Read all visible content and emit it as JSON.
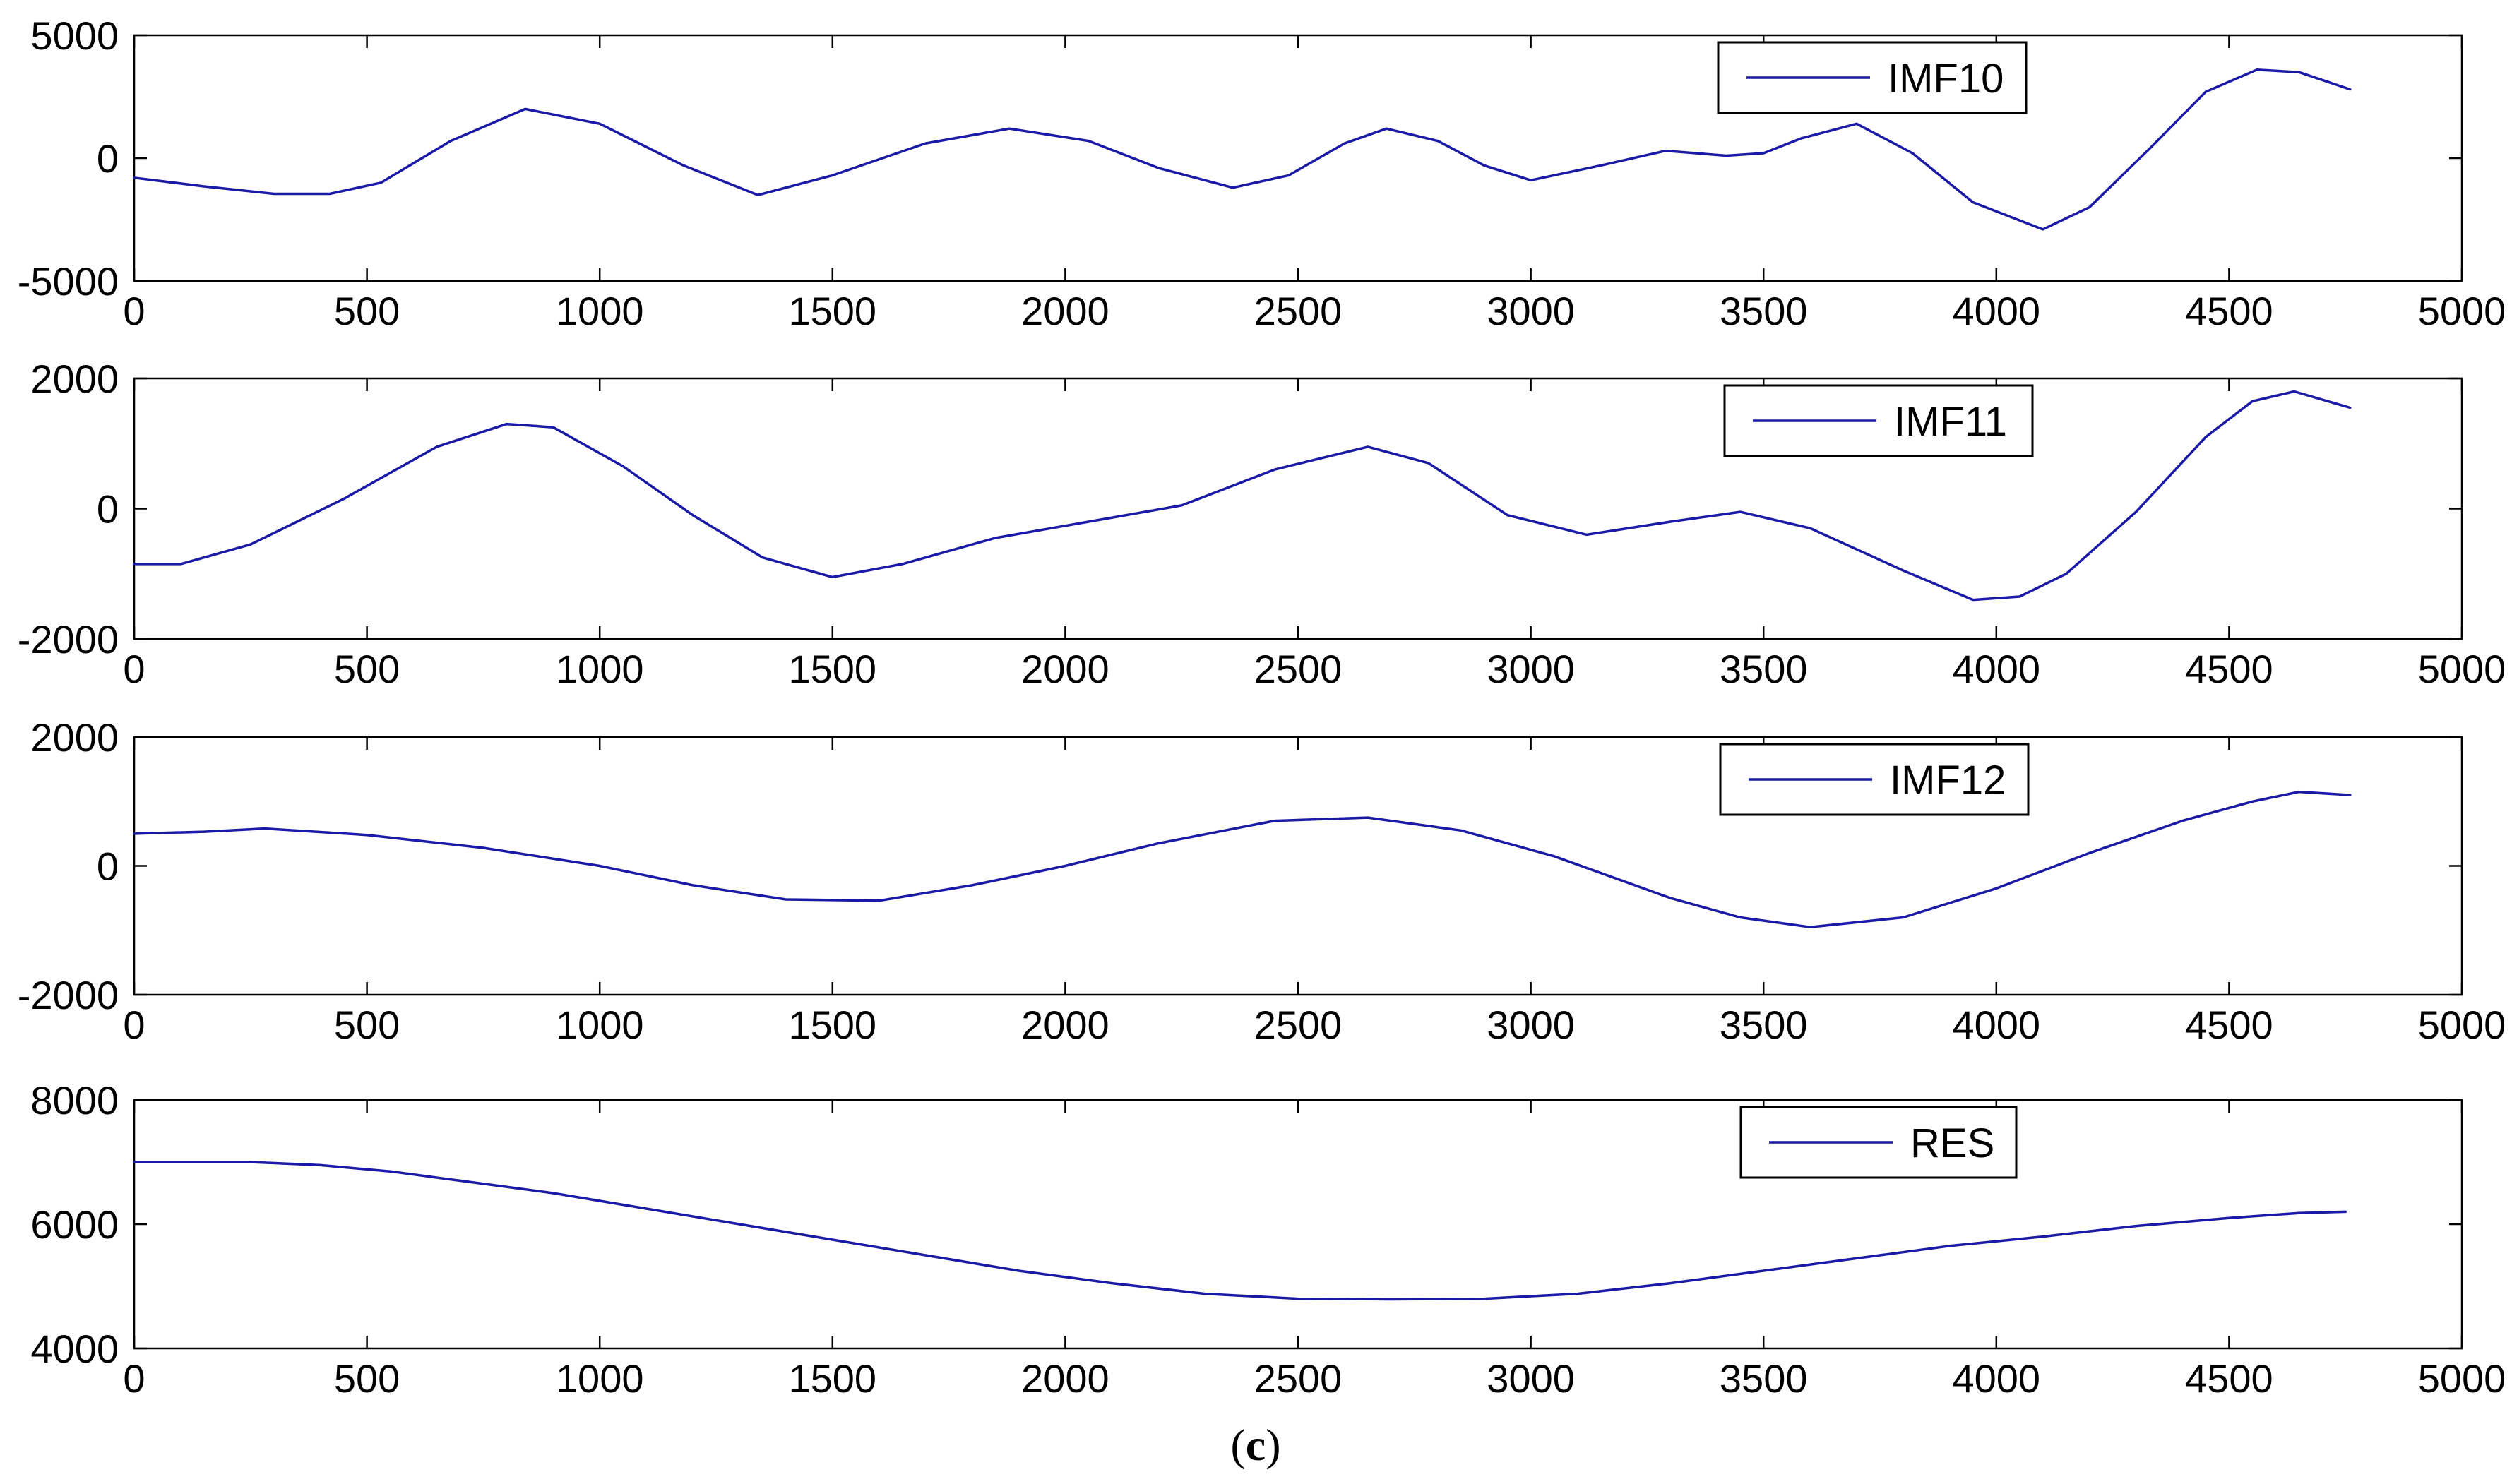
{
  "figure": {
    "caption_open": "(",
    "caption_letter": "c",
    "caption_close": ")"
  },
  "colors": {
    "series": "#1a1aa6",
    "axes": "#000000",
    "background": "#ffffff"
  },
  "chart_data": [
    {
      "type": "line",
      "title": "",
      "xlabel": "",
      "ylabel": "",
      "xlim": [
        0,
        5000
      ],
      "ylim": [
        -5000,
        5000
      ],
      "xticks": [
        0,
        500,
        1000,
        1500,
        2000,
        2500,
        3000,
        3500,
        4000,
        4500,
        5000
      ],
      "yticks": [
        -5000,
        0,
        5000
      ],
      "grid": false,
      "legend_position": "top-right",
      "series": [
        {
          "name": "IMF10",
          "x": [
            0,
            150,
            300,
            420,
            530,
            680,
            840,
            1000,
            1180,
            1340,
            1500,
            1700,
            1880,
            2050,
            2200,
            2360,
            2480,
            2600,
            2690,
            2800,
            2900,
            3000,
            3150,
            3290,
            3420,
            3500,
            3580,
            3700,
            3820,
            3950,
            4100,
            4200,
            4330,
            4450,
            4560,
            4650,
            4760
          ],
          "y": [
            -800,
            -1150,
            -1450,
            -1450,
            -1000,
            700,
            2000,
            1400,
            -300,
            -1500,
            -700,
            600,
            1200,
            700,
            -400,
            -1200,
            -700,
            600,
            1200,
            700,
            -300,
            -900,
            -300,
            300,
            100,
            200,
            800,
            1400,
            200,
            -1800,
            -2900,
            -2000,
            400,
            2700,
            3600,
            3500,
            2800
          ]
        }
      ]
    },
    {
      "type": "line",
      "title": "",
      "xlabel": "",
      "ylabel": "",
      "xlim": [
        0,
        5000
      ],
      "ylim": [
        -2000,
        2000
      ],
      "xticks": [
        0,
        500,
        1000,
        1500,
        2000,
        2500,
        3000,
        3500,
        4000,
        4500,
        5000
      ],
      "yticks": [
        -2000,
        0,
        2000
      ],
      "grid": false,
      "legend_position": "top-right",
      "series": [
        {
          "name": "IMF11",
          "x": [
            0,
            100,
            250,
            450,
            650,
            800,
            900,
            1050,
            1200,
            1350,
            1500,
            1650,
            1850,
            2050,
            2250,
            2450,
            2650,
            2780,
            2950,
            3120,
            3300,
            3450,
            3600,
            3800,
            3950,
            4050,
            4150,
            4300,
            4450,
            4550,
            4640,
            4760
          ],
          "y": [
            -850,
            -850,
            -550,
            150,
            950,
            1300,
            1250,
            650,
            -100,
            -750,
            -1050,
            -850,
            -450,
            -200,
            50,
            600,
            950,
            700,
            -100,
            -400,
            -200,
            -50,
            -300,
            -950,
            -1400,
            -1350,
            -1000,
            -50,
            1100,
            1650,
            1800,
            1550
          ]
        }
      ]
    },
    {
      "type": "line",
      "title": "",
      "xlabel": "",
      "ylabel": "",
      "xlim": [
        0,
        5000
      ],
      "ylim": [
        -2000,
        2000
      ],
      "xticks": [
        0,
        500,
        1000,
        1500,
        2000,
        2500,
        3000,
        3500,
        4000,
        4500,
        5000
      ],
      "yticks": [
        -2000,
        0,
        2000
      ],
      "grid": false,
      "legend_position": "top-right",
      "series": [
        {
          "name": "IMF12",
          "x": [
            0,
            150,
            280,
            500,
            750,
            1000,
            1200,
            1400,
            1600,
            1800,
            2000,
            2200,
            2450,
            2650,
            2850,
            3050,
            3300,
            3450,
            3600,
            3800,
            4000,
            4200,
            4400,
            4550,
            4650,
            4760
          ],
          "y": [
            500,
            530,
            580,
            480,
            280,
            0,
            -300,
            -520,
            -540,
            -300,
            0,
            350,
            700,
            750,
            550,
            150,
            -500,
            -800,
            -950,
            -800,
            -350,
            200,
            700,
            1000,
            1150,
            1100
          ]
        }
      ]
    },
    {
      "type": "line",
      "title": "",
      "xlabel": "",
      "ylabel": "",
      "xlim": [
        0,
        5000
      ],
      "ylim": [
        4000,
        8000
      ],
      "xticks": [
        0,
        500,
        1000,
        1500,
        2000,
        2500,
        3000,
        3500,
        4000,
        4500,
        5000
      ],
      "yticks": [
        4000,
        6000,
        8000
      ],
      "grid": false,
      "legend_position": "top-right",
      "series": [
        {
          "name": "RES",
          "x": [
            0,
            100,
            250,
            400,
            550,
            700,
            900,
            1100,
            1300,
            1500,
            1700,
            1900,
            2100,
            2300,
            2500,
            2700,
            2900,
            3100,
            3300,
            3500,
            3700,
            3900,
            4100,
            4300,
            4500,
            4650,
            4750
          ],
          "y": [
            7000,
            7000,
            7000,
            6950,
            6850,
            6700,
            6500,
            6250,
            6000,
            5750,
            5500,
            5250,
            5050,
            4880,
            4800,
            4790,
            4800,
            4880,
            5050,
            5250,
            5450,
            5650,
            5800,
            5970,
            6100,
            6180,
            6200
          ]
        }
      ]
    }
  ]
}
